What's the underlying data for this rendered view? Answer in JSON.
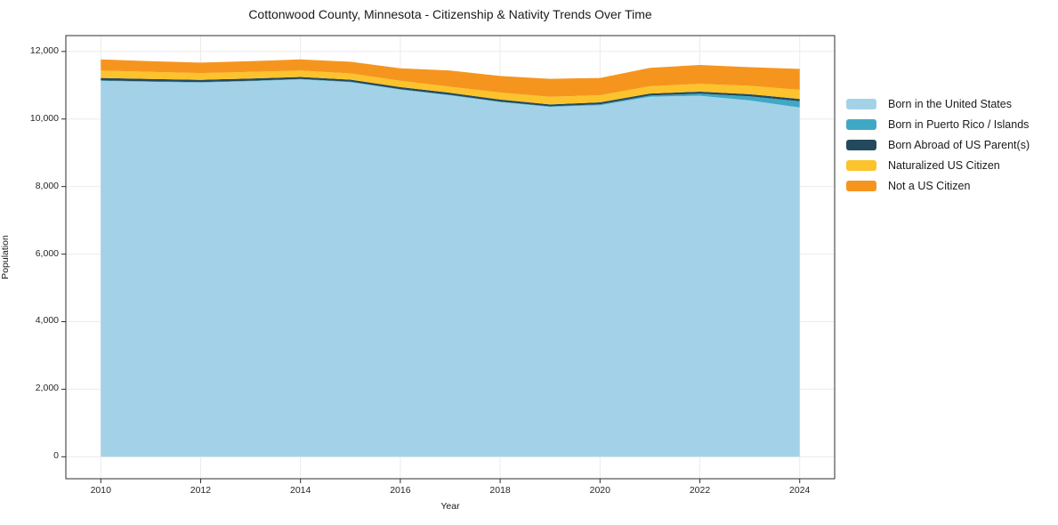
{
  "figure": {
    "title": "Cottonwood County, Minnesota - Citizenship & Nativity Trends Over Time",
    "xlabel": "Year",
    "ylabel": "Population"
  },
  "chart_data": {
    "type": "area",
    "stacked": true,
    "title": "Cottonwood County, Minnesota - Citizenship & Nativity Trends Over Time",
    "xlabel": "Year",
    "ylabel": "Population",
    "grid": true,
    "legend_position": "right",
    "x": [
      2010,
      2011,
      2012,
      2013,
      2014,
      2015,
      2016,
      2017,
      2018,
      2019,
      2020,
      2021,
      2022,
      2023,
      2024
    ],
    "x_ticks": [
      2010,
      2012,
      2014,
      2016,
      2018,
      2020,
      2022,
      2024
    ],
    "y_ticks": [
      0,
      2000,
      4000,
      6000,
      8000,
      10000,
      12000
    ],
    "xlim": [
      2009.3,
      2024.7
    ],
    "ylim": [
      -650,
      12470
    ],
    "series": [
      {
        "name": "Born in the United States",
        "color": "#a3d2e8",
        "values": [
          11130,
          11100,
          11080,
          11120,
          11170,
          11090,
          10870,
          10700,
          10500,
          10360,
          10410,
          10660,
          10690,
          10550,
          10340
        ]
      },
      {
        "name": "Born in Puerto Rico / Islands",
        "color": "#3fa9c5",
        "values": [
          15,
          15,
          15,
          15,
          15,
          15,
          15,
          15,
          15,
          15,
          25,
          35,
          60,
          120,
          185
        ]
      },
      {
        "name": "Born Abroad of US Parent(s)",
        "color": "#25495c",
        "values": [
          70,
          70,
          65,
          65,
          60,
          60,
          60,
          60,
          60,
          55,
          60,
          60,
          60,
          65,
          70
        ]
      },
      {
        "name": "Naturalized US Citizen",
        "color": "#fcc32d",
        "values": [
          220,
          210,
          200,
          195,
          190,
          185,
          190,
          180,
          210,
          230,
          210,
          215,
          230,
          250,
          270
        ]
      },
      {
        "name": "Not a US Citizen",
        "color": "#f6951e",
        "values": [
          330,
          320,
          310,
          320,
          330,
          345,
          365,
          480,
          490,
          530,
          510,
          545,
          560,
          550,
          620
        ]
      }
    ]
  }
}
